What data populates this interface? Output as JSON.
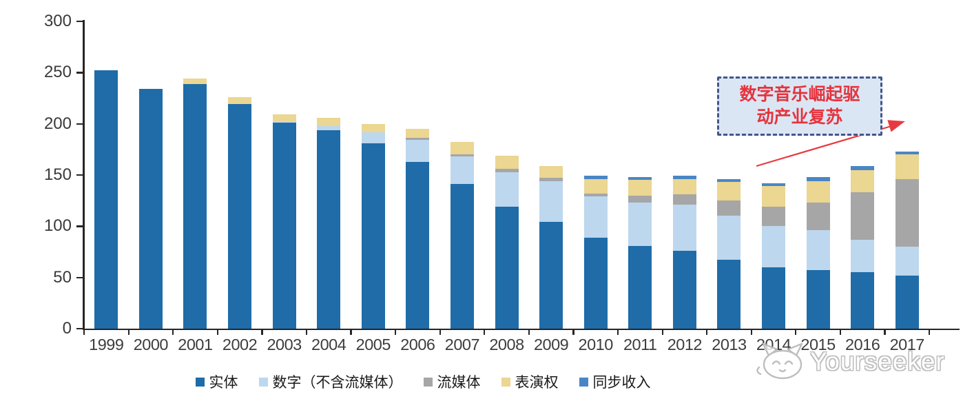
{
  "chart_data": {
    "type": "bar",
    "stacked": true,
    "title": "",
    "xlabel": "",
    "ylabel": "",
    "ylim": [
      0,
      300
    ],
    "yticks": [
      0,
      50,
      100,
      150,
      200,
      250,
      300
    ],
    "grid": false,
    "legend_position": "bottom",
    "categories": [
      "1999",
      "2000",
      "2001",
      "2002",
      "2003",
      "2004",
      "2005",
      "2006",
      "2007",
      "2008",
      "2009",
      "2010",
      "2011",
      "2012",
      "2013",
      "2014",
      "2015",
      "2016",
      "2017"
    ],
    "series": [
      {
        "key": "physical",
        "name": "实体",
        "color": "#1F6CA8",
        "values": [
          252,
          234,
          239,
          219,
          201,
          194,
          181,
          163,
          141,
          119,
          104,
          89,
          81,
          76,
          67,
          60,
          57,
          55,
          52
        ]
      },
      {
        "key": "digital-excl-streaming",
        "name": "数字（不含流媒体）",
        "color": "#BDD7EE",
        "values": [
          0,
          0,
          0,
          0,
          1,
          4,
          11,
          21,
          27,
          34,
          40,
          40,
          42,
          45,
          43,
          40,
          39,
          32,
          28
        ]
      },
      {
        "key": "streaming",
        "name": "流媒体",
        "color": "#A6A6A6",
        "values": [
          0,
          0,
          0,
          0,
          0,
          0,
          0,
          2,
          2,
          3,
          3,
          3,
          7,
          10,
          15,
          19,
          27,
          46,
          66
        ]
      },
      {
        "key": "performance-rights",
        "name": "表演权",
        "color": "#EBD692",
        "values": [
          0,
          0,
          5,
          7,
          7,
          8,
          8,
          9,
          12,
          13,
          12,
          14,
          15,
          15,
          18,
          20,
          21,
          22,
          24
        ]
      },
      {
        "key": "sync-revenue",
        "name": "同步收入",
        "color": "#4A86C4",
        "values": [
          0,
          0,
          0,
          0,
          0,
          0,
          0,
          0,
          0,
          0,
          0,
          3,
          3,
          3,
          3,
          3,
          4,
          4,
          3
        ]
      }
    ]
  },
  "ui": {
    "annotation": {
      "lines": [
        "数字音乐崛起驱",
        "动产业复苏"
      ],
      "text_color": "#e6333d",
      "box_fill": "#dbe6f4",
      "box_border": "#44568c",
      "arrow_color": "#e73a40"
    },
    "watermark": {
      "text": "Yourseeker",
      "logo": "cat-face-icon",
      "color": "#b9b9b9"
    },
    "axis_color": "#262626"
  }
}
